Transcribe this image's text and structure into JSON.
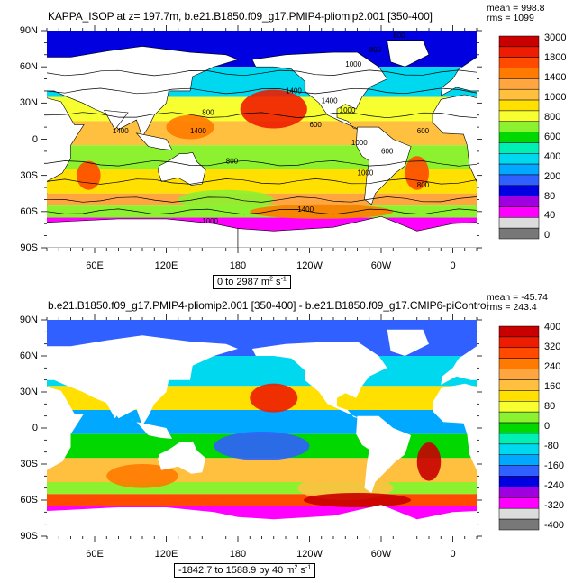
{
  "top_panel": {
    "title": "KAPPA_ISOP at z= 197.7m, b.e21.B1850.f09_g17.PMIP4-pliomip2.001 [350-400]",
    "stats": {
      "mean": "mean = 998.8",
      "rms": "rms = 1099"
    },
    "range": {
      "text": "0 to 2987 m",
      "unit_exp": "2",
      "unit_tail": " s",
      "unit_exp2": "-1"
    },
    "colorbar": {
      "labels": [
        "3000",
        "1800",
        "1400",
        "1000",
        "800",
        "600",
        "400",
        "200",
        "80",
        "40",
        "0"
      ],
      "colors": [
        "#c80000",
        "#ee1c00",
        "#ff4a00",
        "#ff7a00",
        "#ffa640",
        "#ffc040",
        "#ffe000",
        "#f7ff30",
        "#8cf230",
        "#00d800",
        "#00f0b4",
        "#00d8f0",
        "#00a8ff",
        "#3060ff",
        "#0000e0",
        "#a000e0",
        "#ff00ff",
        "#dcdcdc",
        "#787878"
      ]
    },
    "contour_labels": [
      "800",
      "800",
      "1000",
      "1400",
      "1400",
      "1000",
      "800",
      "600",
      "1400",
      "1400",
      "1000",
      "1000",
      "800",
      "600",
      "1000",
      "1400",
      "800",
      "600"
    ]
  },
  "bottom_panel": {
    "title": "b.e21.B1850.f09_g17.PMIP4-pliomip2.001 [350-400] - b.e21.B1850.f09_g17.CMIP6-piControl",
    "stats": {
      "mean": "mean = -45.74",
      "rms": "rms = 243.4"
    },
    "range": {
      "text": "-1842.7 to 1588.9 by 40 m",
      "unit_exp": "2",
      "unit_tail": " s",
      "unit_exp2": "-1"
    },
    "colorbar": {
      "labels": [
        "400",
        "320",
        "240",
        "160",
        "80",
        "0",
        "-80",
        "-160",
        "-240",
        "-320",
        "-400"
      ],
      "colors": [
        "#c80000",
        "#ee1c00",
        "#ff4a00",
        "#ff7a00",
        "#ffa640",
        "#ffc040",
        "#ffe000",
        "#f7ff30",
        "#8cf230",
        "#00d800",
        "#00f0b4",
        "#00d8f0",
        "#00a8ff",
        "#3060ff",
        "#0000e0",
        "#a000e0",
        "#ff00ff",
        "#dcdcdc",
        "#787878"
      ]
    }
  },
  "axes": {
    "lat_labels": [
      "90N",
      "60N",
      "30N",
      "0",
      "30S",
      "60S",
      "90S"
    ],
    "lon_labels": [
      "60E",
      "120E",
      "180",
      "120W",
      "60W",
      "0"
    ]
  }
}
